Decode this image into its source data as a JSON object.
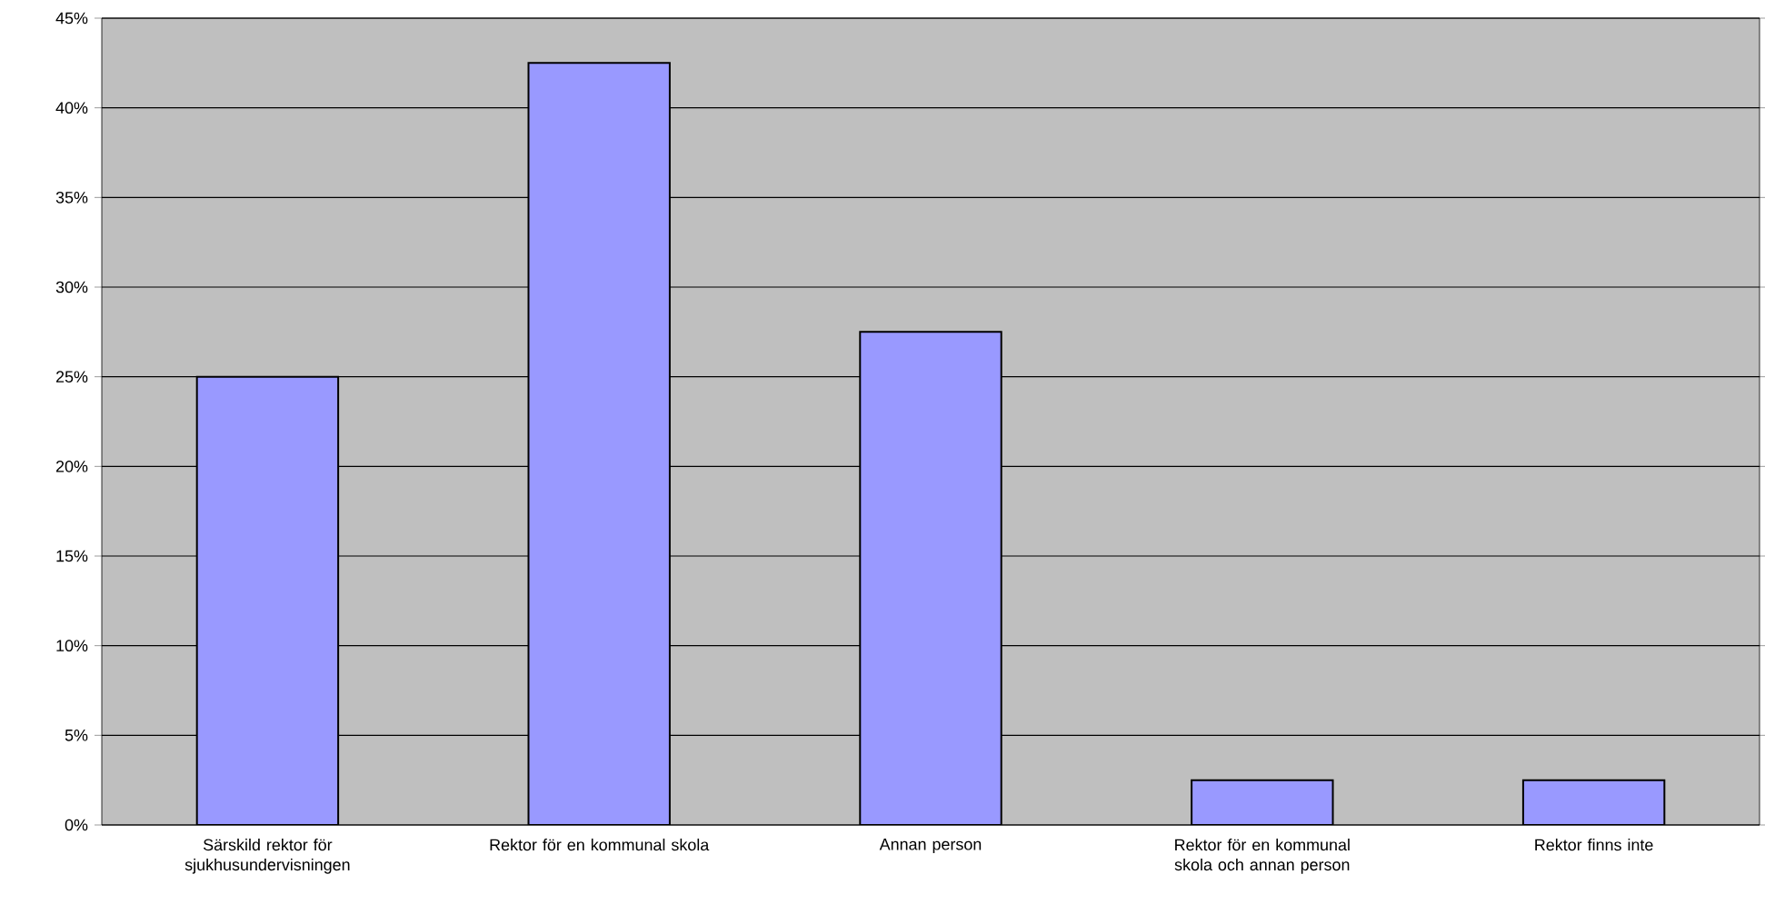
{
  "chart_data": {
    "type": "bar",
    "categories": [
      "Särskild rektor för sjukhusundervisningen",
      "Rektor för en kommunal skola",
      "Annan person",
      "Rektor för en kommunal skola och annan person",
      "Rektor finns inte"
    ],
    "values": [
      25,
      42.5,
      27.5,
      2.5,
      2.5
    ],
    "color": "#9999ff",
    "ylim": [
      0,
      45
    ],
    "yticks": [
      {
        "value": 0,
        "label": "0%"
      },
      {
        "value": 5,
        "label": "5%"
      },
      {
        "value": 10,
        "label": "10%"
      },
      {
        "value": 15,
        "label": "15%"
      },
      {
        "value": 20,
        "label": "20%"
      },
      {
        "value": 25,
        "label": "25%"
      },
      {
        "value": 30,
        "label": "30%"
      },
      {
        "value": 35,
        "label": "35%"
      },
      {
        "value": 40,
        "label": "40%"
      },
      {
        "value": 45,
        "label": "45%"
      }
    ],
    "grid": "y"
  }
}
